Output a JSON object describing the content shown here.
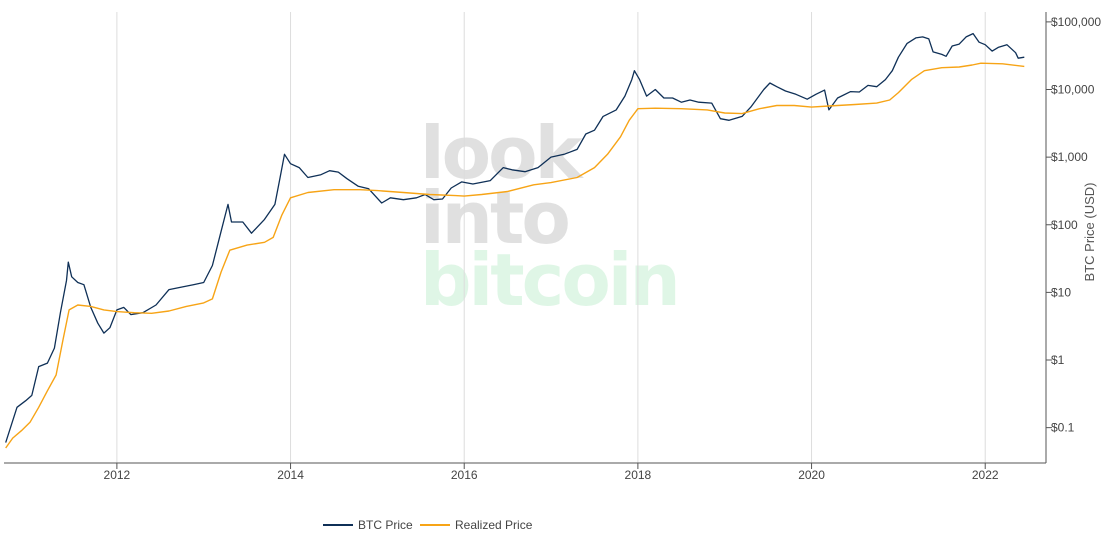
{
  "watermark": {
    "line1": "look",
    "line2": "into",
    "line3": "bitcoin"
  },
  "chart_data": {
    "type": "line",
    "title": "",
    "xlabel": "",
    "ylabel": "BTC Price (USD)",
    "yscale": "log",
    "xlim": [
      2010.7,
      2022.7
    ],
    "ylim": [
      0.03,
      140000
    ],
    "x_ticks": [
      2012,
      2014,
      2016,
      2018,
      2020,
      2022
    ],
    "x_tick_labels": [
      "2012",
      "2014",
      "2016",
      "2018",
      "2020",
      "2022"
    ],
    "y_ticks": [
      0.1,
      1,
      10,
      100,
      1000,
      10000,
      100000
    ],
    "y_tick_labels": [
      "$0.1",
      "$1",
      "$10",
      "$100",
      "$1,000",
      "$10,000",
      "$100,000"
    ],
    "legend_position": "bottom-center",
    "series": [
      {
        "name": "BTC Price",
        "color": "#0f3057",
        "points": [
          [
            2010.72,
            0.06
          ],
          [
            2010.85,
            0.2
          ],
          [
            2010.95,
            0.25
          ],
          [
            2011.02,
            0.3
          ],
          [
            2011.1,
            0.8
          ],
          [
            2011.2,
            0.9
          ],
          [
            2011.28,
            1.5
          ],
          [
            2011.35,
            5
          ],
          [
            2011.42,
            15
          ],
          [
            2011.44,
            28
          ],
          [
            2011.48,
            17
          ],
          [
            2011.55,
            14
          ],
          [
            2011.62,
            13
          ],
          [
            2011.7,
            6
          ],
          [
            2011.78,
            3.5
          ],
          [
            2011.85,
            2.5
          ],
          [
            2011.92,
            3
          ],
          [
            2012.0,
            5.5
          ],
          [
            2012.08,
            6
          ],
          [
            2012.16,
            4.7
          ],
          [
            2012.3,
            5
          ],
          [
            2012.45,
            6.5
          ],
          [
            2012.6,
            11
          ],
          [
            2012.75,
            12
          ],
          [
            2012.88,
            13
          ],
          [
            2013.0,
            14
          ],
          [
            2013.1,
            25
          ],
          [
            2013.2,
            80
          ],
          [
            2013.28,
            200
          ],
          [
            2013.32,
            110
          ],
          [
            2013.45,
            110
          ],
          [
            2013.55,
            75
          ],
          [
            2013.7,
            120
          ],
          [
            2013.82,
            200
          ],
          [
            2013.88,
            500
          ],
          [
            2013.93,
            1100
          ],
          [
            2014.0,
            800
          ],
          [
            2014.1,
            700
          ],
          [
            2014.2,
            500
          ],
          [
            2014.35,
            550
          ],
          [
            2014.45,
            630
          ],
          [
            2014.55,
            600
          ],
          [
            2014.65,
            480
          ],
          [
            2014.78,
            370
          ],
          [
            2014.9,
            340
          ],
          [
            2015.05,
            210
          ],
          [
            2015.15,
            250
          ],
          [
            2015.3,
            235
          ],
          [
            2015.45,
            250
          ],
          [
            2015.55,
            280
          ],
          [
            2015.65,
            235
          ],
          [
            2015.75,
            240
          ],
          [
            2015.85,
            350
          ],
          [
            2015.97,
            430
          ],
          [
            2016.1,
            400
          ],
          [
            2016.3,
            450
          ],
          [
            2016.45,
            700
          ],
          [
            2016.55,
            650
          ],
          [
            2016.7,
            610
          ],
          [
            2016.85,
            700
          ],
          [
            2017.0,
            1000
          ],
          [
            2017.15,
            1100
          ],
          [
            2017.3,
            1300
          ],
          [
            2017.4,
            2200
          ],
          [
            2017.5,
            2500
          ],
          [
            2017.6,
            4000
          ],
          [
            2017.75,
            5000
          ],
          [
            2017.85,
            8000
          ],
          [
            2017.93,
            14000
          ],
          [
            2017.96,
            19000
          ],
          [
            2018.02,
            14000
          ],
          [
            2018.1,
            8000
          ],
          [
            2018.2,
            10000
          ],
          [
            2018.3,
            7500
          ],
          [
            2018.4,
            7500
          ],
          [
            2018.5,
            6500
          ],
          [
            2018.6,
            7000
          ],
          [
            2018.7,
            6500
          ],
          [
            2018.85,
            6300
          ],
          [
            2018.95,
            3700
          ],
          [
            2019.05,
            3500
          ],
          [
            2019.2,
            4000
          ],
          [
            2019.3,
            5500
          ],
          [
            2019.45,
            10000
          ],
          [
            2019.52,
            12500
          ],
          [
            2019.6,
            11000
          ],
          [
            2019.7,
            9500
          ],
          [
            2019.82,
            8500
          ],
          [
            2019.95,
            7200
          ],
          [
            2020.05,
            8500
          ],
          [
            2020.15,
            9800
          ],
          [
            2020.2,
            5000
          ],
          [
            2020.3,
            7500
          ],
          [
            2020.45,
            9300
          ],
          [
            2020.55,
            9200
          ],
          [
            2020.65,
            11500
          ],
          [
            2020.75,
            11000
          ],
          [
            2020.85,
            14000
          ],
          [
            2020.93,
            19000
          ],
          [
            2021.0,
            30000
          ],
          [
            2021.1,
            48000
          ],
          [
            2021.2,
            58000
          ],
          [
            2021.28,
            60000
          ],
          [
            2021.35,
            56000
          ],
          [
            2021.4,
            36000
          ],
          [
            2021.5,
            33000
          ],
          [
            2021.55,
            31000
          ],
          [
            2021.62,
            44000
          ],
          [
            2021.7,
            47000
          ],
          [
            2021.78,
            60000
          ],
          [
            2021.86,
            67000
          ],
          [
            2021.93,
            50000
          ],
          [
            2022.0,
            46000
          ],
          [
            2022.08,
            37000
          ],
          [
            2022.15,
            42000
          ],
          [
            2022.25,
            46000
          ],
          [
            2022.35,
            35000
          ],
          [
            2022.38,
            29000
          ],
          [
            2022.45,
            30000
          ]
        ]
      },
      {
        "name": "Realized Price",
        "color": "#f7a416",
        "points": [
          [
            2010.72,
            0.05
          ],
          [
            2010.8,
            0.07
          ],
          [
            2010.9,
            0.09
          ],
          [
            2011.0,
            0.12
          ],
          [
            2011.1,
            0.2
          ],
          [
            2011.2,
            0.35
          ],
          [
            2011.3,
            0.6
          ],
          [
            2011.38,
            2
          ],
          [
            2011.45,
            5.5
          ],
          [
            2011.55,
            6.5
          ],
          [
            2011.7,
            6.2
          ],
          [
            2011.85,
            5.5
          ],
          [
            2012.0,
            5.2
          ],
          [
            2012.2,
            5.0
          ],
          [
            2012.4,
            4.9
          ],
          [
            2012.6,
            5.3
          ],
          [
            2012.8,
            6.2
          ],
          [
            2013.0,
            7.0
          ],
          [
            2013.1,
            8
          ],
          [
            2013.2,
            20
          ],
          [
            2013.3,
            42
          ],
          [
            2013.5,
            50
          ],
          [
            2013.7,
            55
          ],
          [
            2013.8,
            65
          ],
          [
            2013.9,
            140
          ],
          [
            2014.0,
            250
          ],
          [
            2014.2,
            300
          ],
          [
            2014.5,
            330
          ],
          [
            2014.8,
            330
          ],
          [
            2015.0,
            320
          ],
          [
            2015.3,
            300
          ],
          [
            2015.6,
            280
          ],
          [
            2015.9,
            270
          ],
          [
            2016.0,
            265
          ],
          [
            2016.2,
            280
          ],
          [
            2016.5,
            310
          ],
          [
            2016.8,
            390
          ],
          [
            2017.0,
            420
          ],
          [
            2017.3,
            500
          ],
          [
            2017.5,
            700
          ],
          [
            2017.65,
            1100
          ],
          [
            2017.8,
            2000
          ],
          [
            2017.9,
            3500
          ],
          [
            2018.0,
            5200
          ],
          [
            2018.2,
            5300
          ],
          [
            2018.5,
            5200
          ],
          [
            2018.8,
            5000
          ],
          [
            2019.0,
            4500
          ],
          [
            2019.2,
            4400
          ],
          [
            2019.4,
            5200
          ],
          [
            2019.6,
            5800
          ],
          [
            2019.8,
            5800
          ],
          [
            2020.0,
            5500
          ],
          [
            2020.2,
            5700
          ],
          [
            2020.5,
            6000
          ],
          [
            2020.75,
            6300
          ],
          [
            2020.9,
            7000
          ],
          [
            2021.0,
            9000
          ],
          [
            2021.15,
            14000
          ],
          [
            2021.3,
            19000
          ],
          [
            2021.5,
            21000
          ],
          [
            2021.7,
            21500
          ],
          [
            2021.85,
            23000
          ],
          [
            2021.95,
            24500
          ],
          [
            2022.2,
            24000
          ],
          [
            2022.45,
            22000
          ]
        ]
      }
    ]
  }
}
